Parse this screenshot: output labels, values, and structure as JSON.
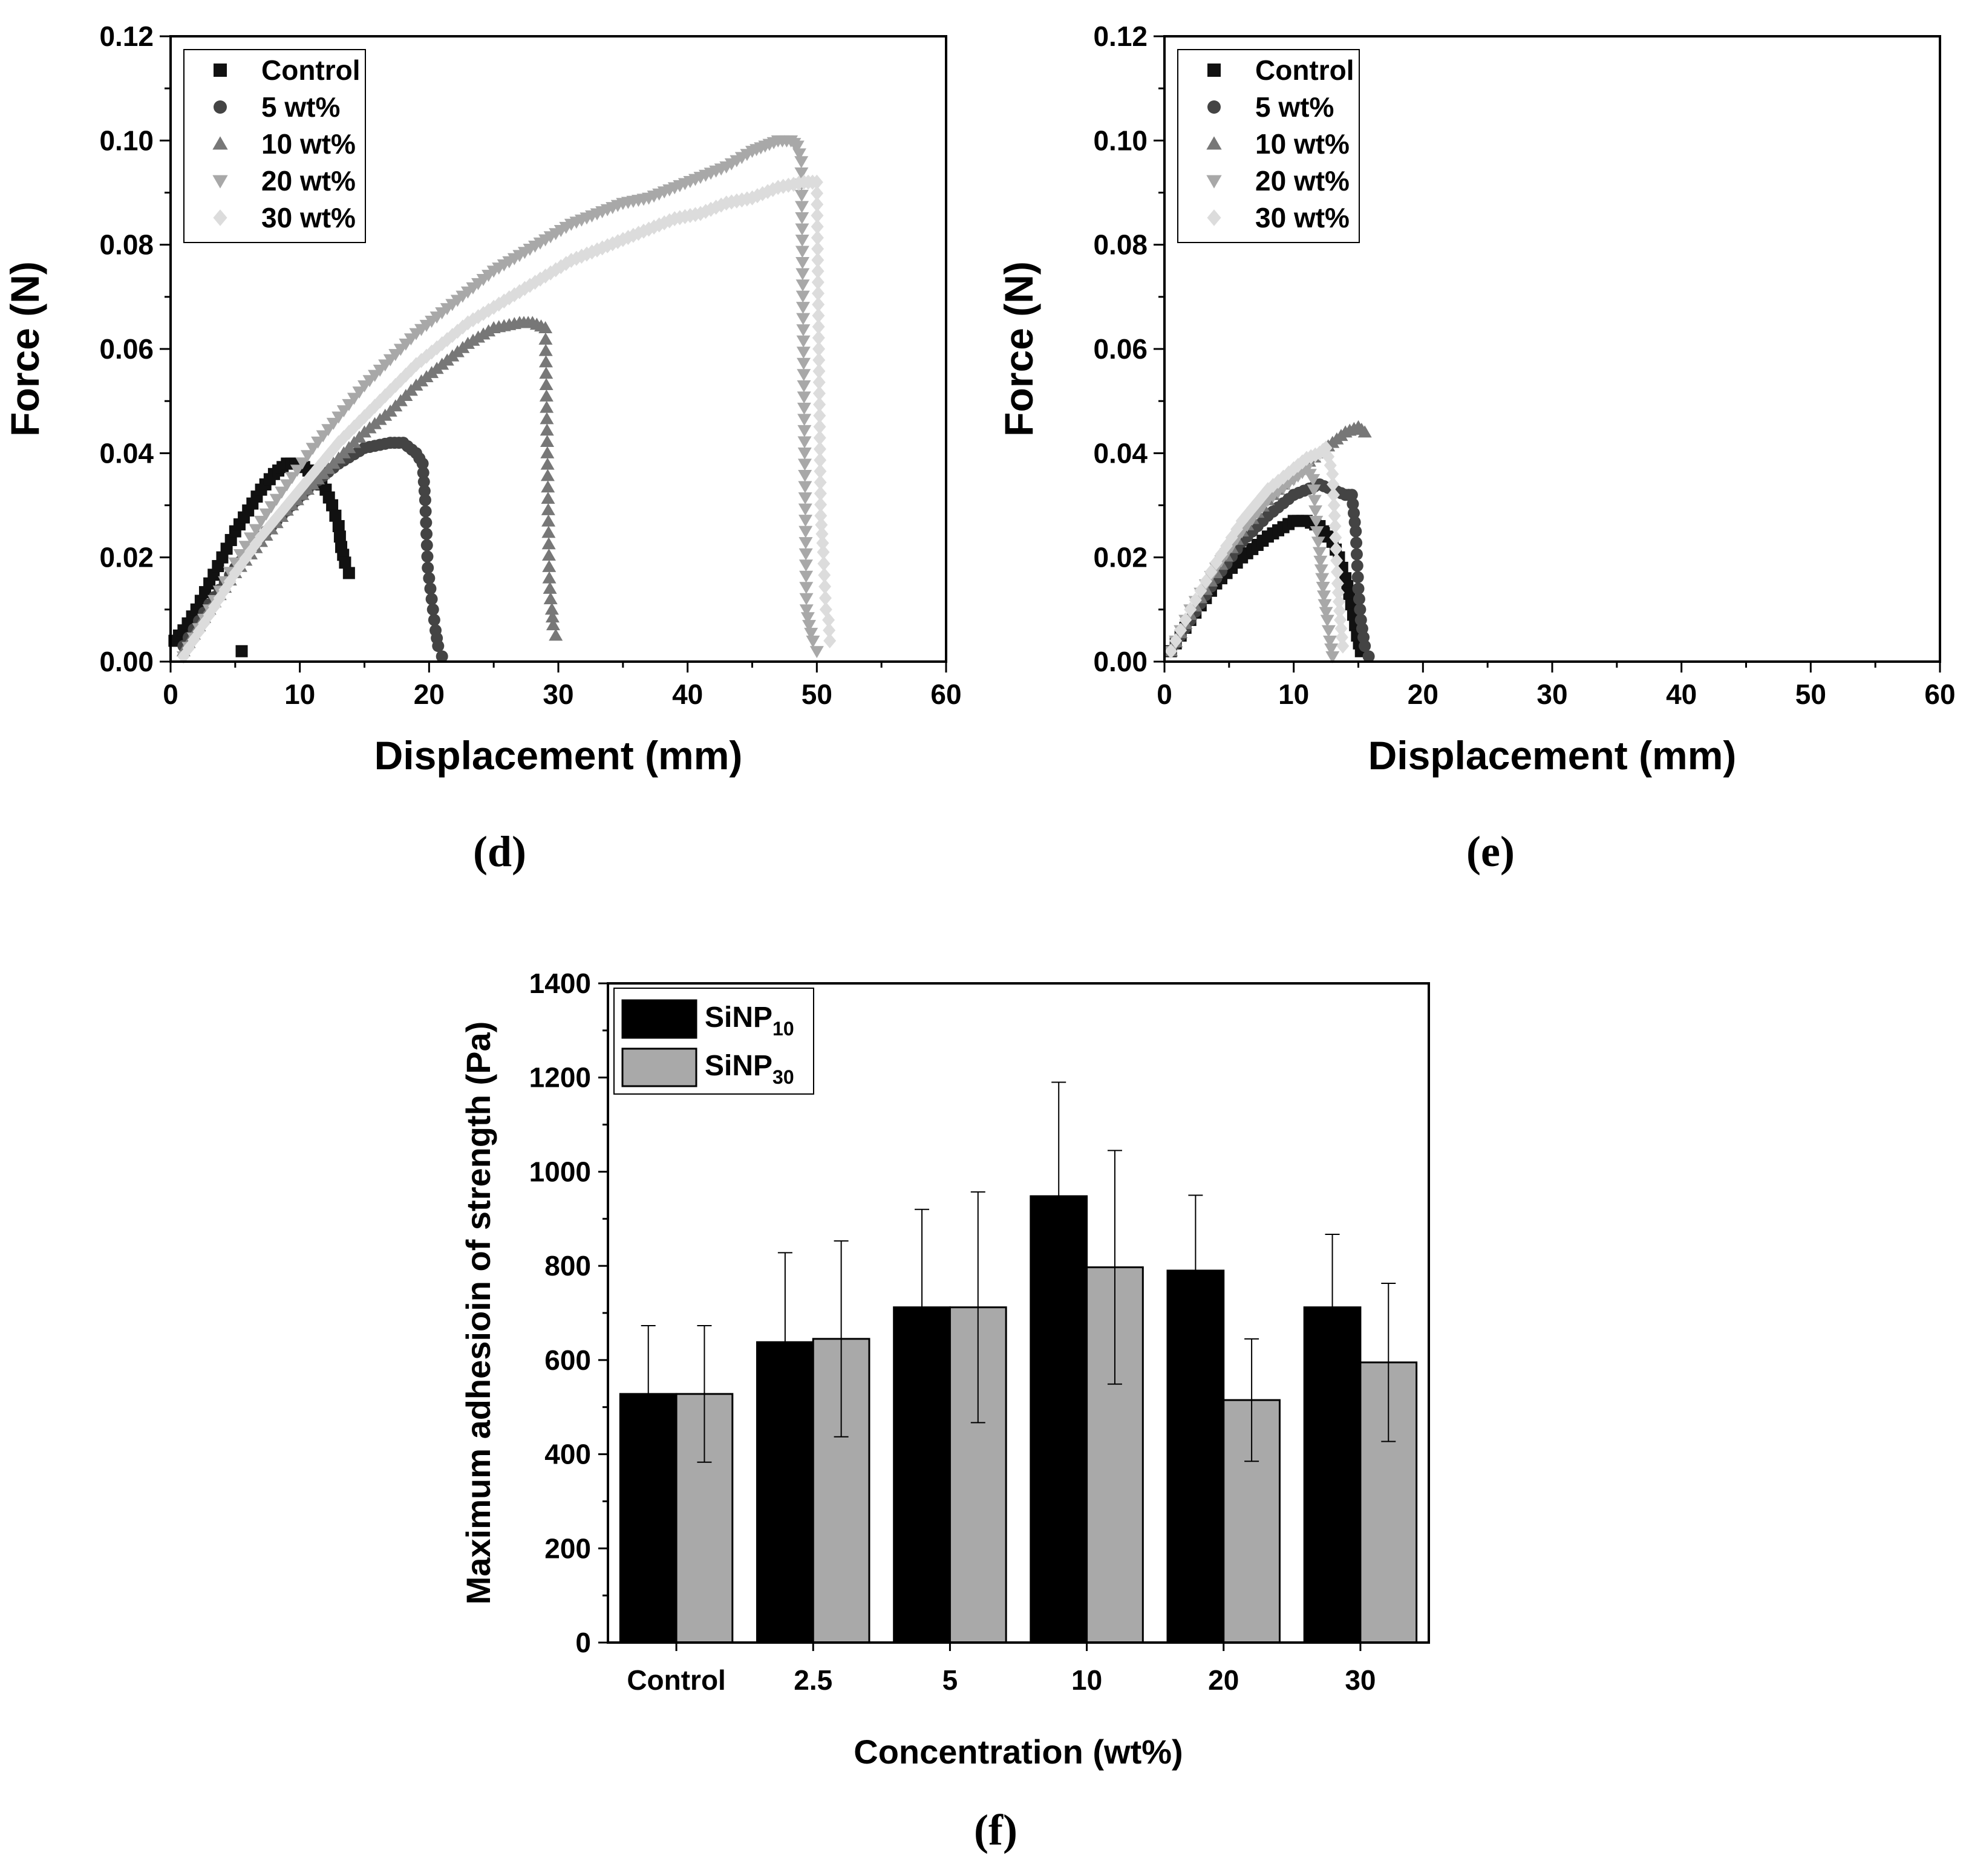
{
  "panel_labels": [
    "(d)",
    "(e)",
    "(f)"
  ],
  "colors": {
    "control": "#111111",
    "wt5": "#444444",
    "wt10": "#777777",
    "wt20": "#a8a8a8",
    "wt30": "#dcdcdc",
    "sinp10": "#000000",
    "sinp30": "#a9a9a9"
  },
  "chart_data": [
    {
      "type": "scatter",
      "panel": "(d)",
      "xlabel": "Displacement (mm)",
      "ylabel": "Force (N)",
      "xlim": [
        0,
        60
      ],
      "ylim": [
        0,
        0.12
      ],
      "xticks": [
        "0",
        "10",
        "20",
        "30",
        "40",
        "50",
        "60"
      ],
      "yticks": [
        "0.00",
        "0.02",
        "0.04",
        "0.06",
        "0.08",
        "0.10",
        "0.12"
      ],
      "legend_position": "top-left",
      "series": [
        {
          "name": "Control",
          "marker": "square",
          "color_key": "control",
          "curve": [
            [
              0.3,
              0.004
            ],
            [
              1,
              0.006
            ],
            [
              2,
              0.01
            ],
            [
              3,
              0.015
            ],
            [
              4,
              0.02
            ],
            [
              5,
              0.025
            ],
            [
              6,
              0.029
            ],
            [
              7,
              0.033
            ],
            [
              8,
              0.036
            ],
            [
              9,
              0.038
            ],
            [
              10,
              0.038
            ],
            [
              11,
              0.036
            ],
            [
              12,
              0.033
            ],
            [
              12.5,
              0.03
            ],
            [
              13,
              0.026
            ],
            [
              13.2,
              0.022
            ],
            [
              13.5,
              0.019
            ],
            [
              13.8,
              0.017
            ]
          ],
          "extra": [
            [
              5.5,
              0.002
            ]
          ]
        },
        {
          "name": "5 wt%",
          "marker": "circle",
          "color_key": "wt5",
          "curve": [
            [
              1,
              0.003
            ],
            [
              3,
              0.011
            ],
            [
              5,
              0.018
            ],
            [
              7,
              0.024
            ],
            [
              9,
              0.029
            ],
            [
              11,
              0.034
            ],
            [
              13,
              0.038
            ],
            [
              15,
              0.041
            ],
            [
              17,
              0.042
            ],
            [
              18,
              0.042
            ],
            [
              19,
              0.04
            ],
            [
              19.5,
              0.038
            ],
            [
              19.7,
              0.031
            ],
            [
              19.9,
              0.018
            ],
            [
              20.1,
              0.014
            ],
            [
              20.3,
              0.01
            ],
            [
              20.5,
              0.006
            ],
            [
              20.7,
              0.003
            ],
            [
              21,
              0.001
            ]
          ],
          "extra": []
        },
        {
          "name": "10 wt%",
          "marker": "triangle-up",
          "color_key": "wt10",
          "curve": [
            [
              1,
              0.002
            ],
            [
              3,
              0.01
            ],
            [
              5,
              0.017
            ],
            [
              7,
              0.023
            ],
            [
              9,
              0.029
            ],
            [
              11,
              0.034
            ],
            [
              13,
              0.039
            ],
            [
              15,
              0.044
            ],
            [
              17,
              0.048
            ],
            [
              19,
              0.053
            ],
            [
              21,
              0.057
            ],
            [
              23,
              0.061
            ],
            [
              25,
              0.064
            ],
            [
              27,
              0.065
            ],
            [
              28,
              0.065
            ],
            [
              29,
              0.064
            ],
            [
              29.3,
              0.016
            ],
            [
              29.4,
              0.012
            ],
            [
              29.5,
              0.01
            ],
            [
              29.6,
              0.007
            ],
            [
              29.8,
              0.005
            ]
          ],
          "extra": []
        },
        {
          "name": "20 wt%",
          "marker": "triangle-down",
          "color_key": "wt20",
          "curve": [
            [
              1,
              0.001
            ],
            [
              3,
              0.01
            ],
            [
              5,
              0.019
            ],
            [
              7,
              0.027
            ],
            [
              9,
              0.034
            ],
            [
              11,
              0.041
            ],
            [
              13,
              0.047
            ],
            [
              15,
              0.053
            ],
            [
              17,
              0.058
            ],
            [
              19,
              0.063
            ],
            [
              21,
              0.067
            ],
            [
              23,
              0.071
            ],
            [
              25,
              0.075
            ],
            [
              27,
              0.078
            ],
            [
              29,
              0.081
            ],
            [
              31,
              0.084
            ],
            [
              33,
              0.086
            ],
            [
              35,
              0.088
            ],
            [
              37,
              0.089
            ],
            [
              39,
              0.091
            ],
            [
              41,
              0.093
            ],
            [
              43,
              0.095
            ],
            [
              45,
              0.098
            ],
            [
              46,
              0.099
            ],
            [
              47,
              0.1
            ],
            [
              48,
              0.1
            ],
            [
              48.5,
              0.099
            ],
            [
              48.8,
              0.096
            ],
            [
              49.2,
              0.01
            ],
            [
              49.4,
              0.007
            ],
            [
              49.7,
              0.004
            ],
            [
              50,
              0.002
            ]
          ],
          "extra": []
        },
        {
          "name": "30 wt%",
          "marker": "diamond",
          "color_key": "wt30",
          "curve": [
            [
              1,
              0.001
            ],
            [
              3,
              0.009
            ],
            [
              5,
              0.017
            ],
            [
              7,
              0.024
            ],
            [
              9,
              0.03
            ],
            [
              11,
              0.036
            ],
            [
              13,
              0.042
            ],
            [
              15,
              0.047
            ],
            [
              17,
              0.052
            ],
            [
              19,
              0.057
            ],
            [
              21,
              0.061
            ],
            [
              23,
              0.065
            ],
            [
              25,
              0.068
            ],
            [
              27,
              0.071
            ],
            [
              29,
              0.074
            ],
            [
              31,
              0.077
            ],
            [
              33,
              0.079
            ],
            [
              35,
              0.081
            ],
            [
              37,
              0.083
            ],
            [
              39,
              0.085
            ],
            [
              41,
              0.086
            ],
            [
              43,
              0.088
            ],
            [
              45,
              0.089
            ],
            [
              47,
              0.091
            ],
            [
              49,
              0.092
            ],
            [
              50,
              0.092
            ],
            [
              50.3,
              0.028
            ],
            [
              50.5,
              0.021
            ],
            [
              50.7,
              0.01
            ],
            [
              50.9,
              0.008
            ],
            [
              51,
              0.004
            ]
          ],
          "extra": []
        }
      ]
    },
    {
      "type": "scatter",
      "panel": "(e)",
      "xlabel": "Displacement (mm)",
      "ylabel": "Force (N)",
      "xlim": [
        0,
        60
      ],
      "ylim": [
        0,
        0.12
      ],
      "xticks": [
        "0",
        "10",
        "20",
        "30",
        "40",
        "50",
        "60"
      ],
      "yticks": [
        "0.00",
        "0.02",
        "0.04",
        "0.06",
        "0.08",
        "0.10",
        "0.12"
      ],
      "legend_position": "top-left",
      "series": [
        {
          "name": "Control",
          "marker": "square",
          "color_key": "control",
          "curve": [
            [
              0.5,
              0.002
            ],
            [
              2,
              0.008
            ],
            [
              4,
              0.015
            ],
            [
              6,
              0.02
            ],
            [
              8,
              0.024
            ],
            [
              10,
              0.027
            ],
            [
              11,
              0.027
            ],
            [
              12,
              0.026
            ],
            [
              13,
              0.023
            ],
            [
              13.5,
              0.02
            ],
            [
              14,
              0.016
            ],
            [
              14.3,
              0.013
            ],
            [
              14.6,
              0.009
            ],
            [
              14.9,
              0.005
            ],
            [
              15.2,
              0.002
            ]
          ],
          "extra": []
        },
        {
          "name": "5 wt%",
          "marker": "circle",
          "color_key": "wt5",
          "curve": [
            [
              0.5,
              0.002
            ],
            [
              2,
              0.008
            ],
            [
              4,
              0.016
            ],
            [
              6,
              0.023
            ],
            [
              8,
              0.028
            ],
            [
              10,
              0.032
            ],
            [
              12,
              0.034
            ],
            [
              13,
              0.033
            ],
            [
              14,
              0.032
            ],
            [
              14.5,
              0.032
            ],
            [
              14.8,
              0.025
            ],
            [
              15,
              0.014
            ],
            [
              15.2,
              0.008
            ],
            [
              15.5,
              0.003
            ],
            [
              15.8,
              0.001
            ]
          ],
          "extra": []
        },
        {
          "name": "10 wt%",
          "marker": "triangle-up",
          "color_key": "wt10",
          "curve": [
            [
              0.5,
              0.002
            ],
            [
              2,
              0.009
            ],
            [
              4,
              0.017
            ],
            [
              6,
              0.025
            ],
            [
              8,
              0.031
            ],
            [
              10,
              0.036
            ],
            [
              12,
              0.04
            ],
            [
              13,
              0.042
            ],
            [
              14,
              0.044
            ],
            [
              15,
              0.045
            ],
            [
              15.5,
              0.044
            ]
          ],
          "extra": []
        },
        {
          "name": "20 wt%",
          "marker": "triangle-down",
          "color_key": "wt20",
          "curve": [
            [
              0.5,
              0.002
            ],
            [
              2,
              0.01
            ],
            [
              4,
              0.018
            ],
            [
              6,
              0.025
            ],
            [
              8,
              0.031
            ],
            [
              10,
              0.035
            ],
            [
              11,
              0.037
            ],
            [
              11.5,
              0.035
            ],
            [
              11.8,
              0.025
            ],
            [
              12,
              0.021
            ],
            [
              12.2,
              0.016
            ],
            [
              12.4,
              0.011
            ],
            [
              12.6,
              0.008
            ],
            [
              12.8,
              0.004
            ],
            [
              13,
              0.001
            ]
          ],
          "extra": []
        },
        {
          "name": "30 wt%",
          "marker": "diamond",
          "color_key": "wt30",
          "curve": [
            [
              0.5,
              0.002
            ],
            [
              2,
              0.01
            ],
            [
              4,
              0.019
            ],
            [
              6,
              0.027
            ],
            [
              8,
              0.033
            ],
            [
              10,
              0.037
            ],
            [
              11,
              0.039
            ],
            [
              12,
              0.04
            ],
            [
              12.5,
              0.041
            ],
            [
              13,
              0.036
            ],
            [
              13.2,
              0.026
            ],
            [
              13.4,
              0.015
            ],
            [
              13.6,
              0.008
            ],
            [
              13.8,
              0.003
            ]
          ],
          "extra": []
        }
      ]
    },
    {
      "type": "bar",
      "panel": "(f)",
      "xlabel": "Concentration (wt%)",
      "ylabel": "Maximum adhesioin of strength (Pa)",
      "categories": [
        "Control",
        "2.5",
        "5",
        "10",
        "20",
        "30"
      ],
      "ylim": [
        0,
        1400
      ],
      "yticks": [
        "0",
        "200",
        "400",
        "600",
        "800",
        "1000",
        "1200",
        "1400"
      ],
      "legend_position": "top-left",
      "legend": [
        {
          "base": "SiNP",
          "sub": "10",
          "color_key": "sinp10"
        },
        {
          "base": "SiNP",
          "sub": "30",
          "color_key": "sinp30"
        }
      ],
      "series": [
        {
          "name": "SiNP10",
          "color_key": "sinp10",
          "values": [
            528,
            638,
            712,
            948,
            790,
            712
          ],
          "errors": [
            145,
            190,
            208,
            242,
            160,
            155
          ]
        },
        {
          "name": "SiNP30",
          "color_key": "sinp30",
          "values": [
            528,
            645,
            712,
            797,
            515,
            595
          ],
          "errors": [
            145,
            208,
            245,
            248,
            130,
            168
          ]
        }
      ]
    }
  ]
}
